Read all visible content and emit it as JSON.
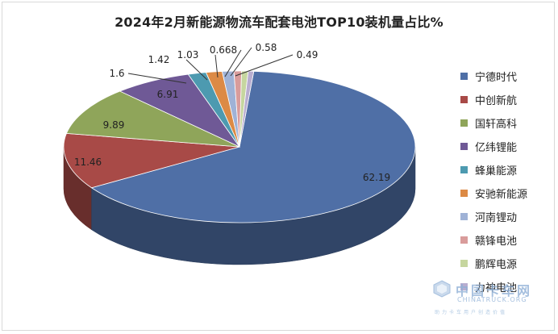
{
  "chart_data": {
    "type": "pie",
    "title": "2024年2月新能源物流车配套电池TOP10装机量占比%",
    "categories": [
      "宁德时代",
      "中创新航",
      "国轩高科",
      "亿纬锂能",
      "蜂巢能源",
      "安驰新能源",
      "河南锂动",
      "赣锋电池",
      "鹏辉电源",
      "力神电池"
    ],
    "values": [
      62.19,
      11.46,
      9.89,
      6.91,
      1.6,
      1.42,
      1.03,
      0.668,
      0.58,
      0.49
    ],
    "value_labels": [
      "62.19",
      "11.46",
      "9.89",
      "6.91",
      "1.6",
      "1.42",
      "1.03",
      "0.668",
      "0.58",
      "0.49"
    ],
    "colors": [
      "#4f6fa6",
      "#a84a47",
      "#8fa55a",
      "#6f5996",
      "#4d9ab0",
      "#dc8a45",
      "#9fb2d6",
      "#d99c9b",
      "#c6d69f",
      "#b8add0"
    ],
    "legend_position": "right",
    "style": "3d-pie"
  },
  "watermark": {
    "brand": "中国卡车网",
    "sub": "CHINATRUCK.ORG",
    "slogan": "助力卡车用户创造价值"
  }
}
